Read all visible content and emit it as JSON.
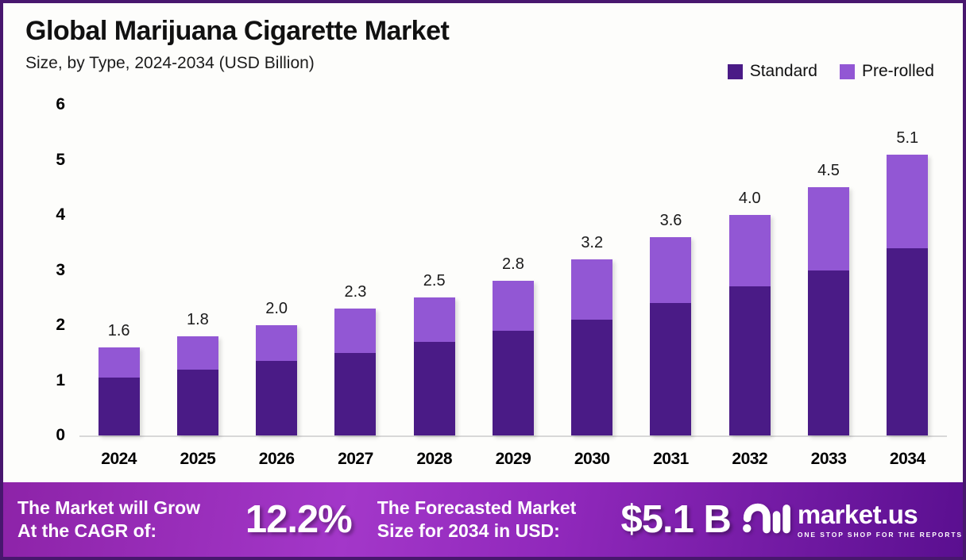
{
  "header": {
    "title": "Global Marijuana Cigarette Market",
    "subtitle": "Size, by Type, 2024-2034 (USD Billion)"
  },
  "legend": {
    "items": [
      {
        "label": "Standard",
        "color": "#4a1b86"
      },
      {
        "label": "Pre-rolled",
        "color": "#9257d4"
      }
    ]
  },
  "colors": {
    "standard": "#4a1b86",
    "pre_rolled": "#9257d4",
    "border": "#48176e",
    "banner_gradient_start": "#8d23a8",
    "banner_gradient_end": "#5a0f90"
  },
  "chart_data": {
    "type": "bar",
    "stacked": true,
    "title": "Global Marijuana Cigarette Market Size, by Type, 2024-2034 (USD Billion)",
    "categories": [
      "2024",
      "2025",
      "2026",
      "2027",
      "2028",
      "2029",
      "2030",
      "2031",
      "2032",
      "2033",
      "2034"
    ],
    "series": [
      {
        "name": "Standard",
        "color": "#4a1b86",
        "values": [
          1.05,
          1.2,
          1.35,
          1.5,
          1.7,
          1.9,
          2.1,
          2.4,
          2.7,
          3.0,
          3.4
        ]
      },
      {
        "name": "Pre-rolled",
        "color": "#9257d4",
        "values": [
          0.55,
          0.6,
          0.65,
          0.8,
          0.8,
          0.9,
          1.1,
          1.2,
          1.3,
          1.5,
          1.7
        ]
      }
    ],
    "total_labels": [
      "1.6",
      "1.8",
      "2.0",
      "2.3",
      "2.5",
      "2.8",
      "3.2",
      "3.6",
      "4.0",
      "4.5",
      "5.1"
    ],
    "xlabel": "",
    "ylabel": "",
    "ylim": [
      0,
      6
    ],
    "yticks": [
      0,
      1,
      2,
      3,
      4,
      5,
      6
    ],
    "grid": false,
    "legend_position": "top-right"
  },
  "banner": {
    "cagr_label_line1": "The Market will Grow",
    "cagr_label_line2": "At the CAGR of:",
    "cagr_value": "12.2%",
    "forecast_label_line1": "The Forecasted Market",
    "forecast_label_line2": "Size for 2034 in USD:",
    "forecast_value": "$5.1 B",
    "logo_name": "market.us",
    "logo_tagline": "ONE STOP SHOP FOR THE REPORTS"
  }
}
